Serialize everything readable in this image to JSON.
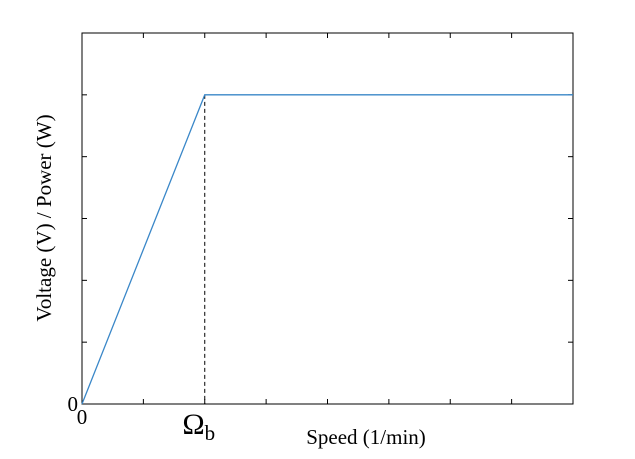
{
  "chart_data": {
    "type": "line",
    "title": "",
    "xlabel": "Speed (1/min)",
    "ylabel": "Voltage (V) / Power (W)",
    "xlim": [
      0,
      8
    ],
    "ylim": [
      0,
      6
    ],
    "x_tick_labels": [
      {
        "x": 0,
        "label": "0"
      }
    ],
    "y_tick_labels": [
      {
        "y": 0,
        "label": "0"
      }
    ],
    "base_speed": {
      "x": 2,
      "label_main": "Ω",
      "label_sub": "b",
      "y": 5
    },
    "grid": false,
    "series": [
      {
        "color": "#3a87c8",
        "points": [
          {
            "x": 0,
            "y": 0
          },
          {
            "x": 2,
            "y": 5
          },
          {
            "x": 8,
            "y": 5
          }
        ]
      }
    ]
  }
}
